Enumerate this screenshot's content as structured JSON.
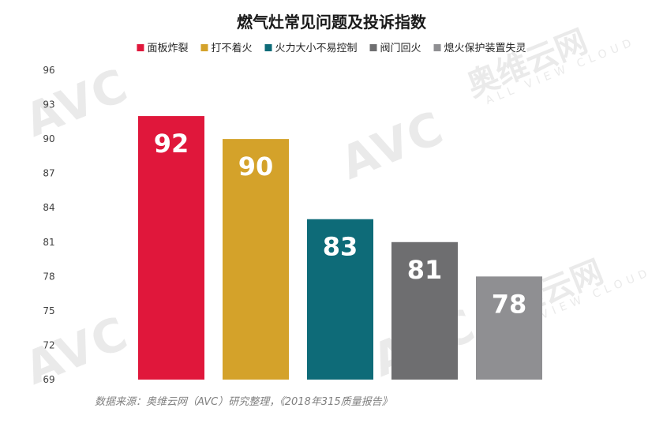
{
  "chart_data": {
    "type": "bar",
    "title": "燃气灶常见问题及投诉指数",
    "categories": [
      "面板炸裂",
      "打不着火",
      "火力大小不易控制",
      "阀门回火",
      "熄火保护装置失灵"
    ],
    "values": [
      92,
      90,
      83,
      81,
      78
    ],
    "colors": [
      "#e0173b",
      "#d4a22a",
      "#0e6b78",
      "#6e6e70",
      "#8f8f92"
    ],
    "ylim": [
      69,
      96
    ],
    "yticks": [
      69,
      72,
      75,
      78,
      81,
      84,
      87,
      90,
      93,
      96
    ],
    "legend_position": "top",
    "grid": false,
    "xlabel": "",
    "ylabel": "",
    "source": "数据来源：奥维云网（AVC）研究整理，《2018年315质量报告》"
  },
  "watermark": {
    "main": "AVC",
    "cn": "奥维云网",
    "sub": "ALL VIEW CLOUD"
  }
}
